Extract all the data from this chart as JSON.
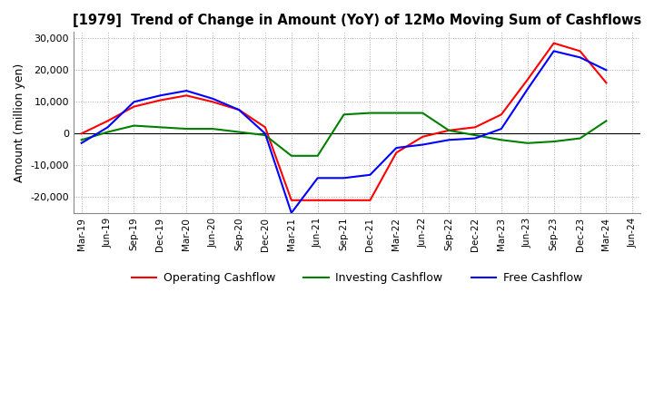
{
  "title": "[1979]  Trend of Change in Amount (YoY) of 12Mo Moving Sum of Cashflows",
  "ylabel": "Amount (million yen)",
  "ylim": [
    -25000,
    32000
  ],
  "yticks": [
    -20000,
    -10000,
    0,
    10000,
    20000,
    30000
  ],
  "x_labels": [
    "Mar-19",
    "Jun-19",
    "Sep-19",
    "Dec-19",
    "Mar-20",
    "Jun-20",
    "Sep-20",
    "Dec-20",
    "Mar-21",
    "Jun-21",
    "Sep-21",
    "Dec-21",
    "Mar-22",
    "Jun-22",
    "Sep-22",
    "Dec-22",
    "Mar-23",
    "Jun-23",
    "Sep-23",
    "Dec-23",
    "Mar-24",
    "Jun-24"
  ],
  "operating": [
    0,
    4000,
    8500,
    10500,
    12000,
    10000,
    7500,
    2000,
    -21000,
    -21000,
    -21000,
    -21000,
    -6000,
    -1000,
    1000,
    2000,
    6000,
    17000,
    28500,
    26000,
    16000,
    null
  ],
  "investing": [
    -2000,
    500,
    2500,
    2000,
    1500,
    1500,
    500,
    -500,
    -7000,
    -7000,
    6000,
    6500,
    6500,
    6500,
    1000,
    -500,
    -2000,
    -3000,
    -2500,
    -1500,
    4000,
    null
  ],
  "free": [
    -3000,
    2000,
    10000,
    12000,
    13500,
    11000,
    7500,
    0,
    -25000,
    -14000,
    -14000,
    -13000,
    -4500,
    -3500,
    -2000,
    -1500,
    1500,
    14000,
    26000,
    24000,
    20000,
    null
  ],
  "operating_color": "#ff0000",
  "investing_color": "#008000",
  "free_color": "#0000ff",
  "grid_color": "#aaaaaa",
  "background_color": "#ffffff"
}
